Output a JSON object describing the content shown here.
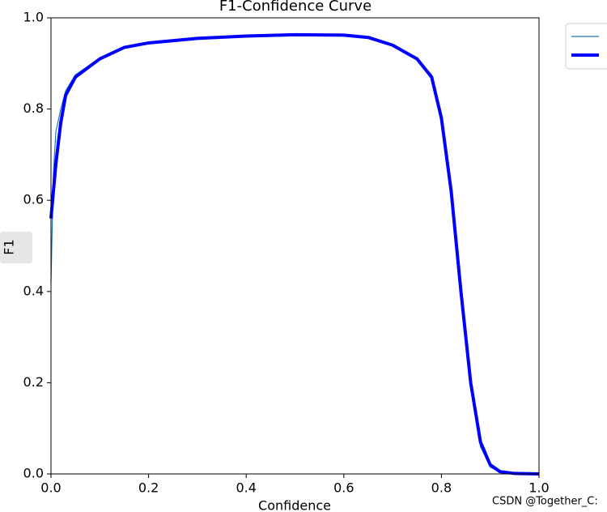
{
  "chart_data": {
    "type": "line",
    "title": "F1-Confidence Curve",
    "x_label": "Confidence",
    "y_label": "F1",
    "watermark": "CSDN @Together_C:",
    "x": [
      0,
      0.005,
      0.01,
      0.02,
      0.03,
      0.05,
      0.1,
      0.15,
      0.2,
      0.3,
      0.4,
      0.5,
      0.6,
      0.65,
      0.7,
      0.75,
      0.78,
      0.8,
      0.82,
      0.84,
      0.86,
      0.88,
      0.9,
      0.92,
      0.95,
      1.0
    ],
    "series": [
      {
        "color": "#1f77b4",
        "width": 1.2,
        "values": [
          0.42,
          0.66,
          0.75,
          0.8,
          0.84,
          0.875,
          0.912,
          0.935,
          0.945,
          0.955,
          0.96,
          0.963,
          0.962,
          0.957,
          0.94,
          0.91,
          0.875,
          0.79,
          0.62,
          0.39,
          0.19,
          0.06,
          0.015,
          0.004,
          0.001,
          0
        ]
      },
      {
        "color": "#0000ff",
        "width": 4,
        "values": [
          0.56,
          0.62,
          0.68,
          0.77,
          0.83,
          0.87,
          0.91,
          0.935,
          0.945,
          0.955,
          0.96,
          0.963,
          0.962,
          0.957,
          0.94,
          0.91,
          0.87,
          0.78,
          0.62,
          0.4,
          0.2,
          0.07,
          0.02,
          0.005,
          0.001,
          0
        ]
      }
    ],
    "xlim": [
      0,
      1
    ],
    "ylim": [
      0,
      1
    ],
    "xticks": [
      {
        "value": 0,
        "label": "0.0"
      },
      0.2,
      0.4,
      0.6,
      0.8,
      {
        "value": 1,
        "label": "1.0"
      }
    ],
    "yticks": [
      {
        "value": 0,
        "label": "0.0"
      },
      0.2,
      0.4,
      0.6,
      0.8,
      {
        "value": 1,
        "label": "1.0"
      }
    ],
    "grid": false
  }
}
